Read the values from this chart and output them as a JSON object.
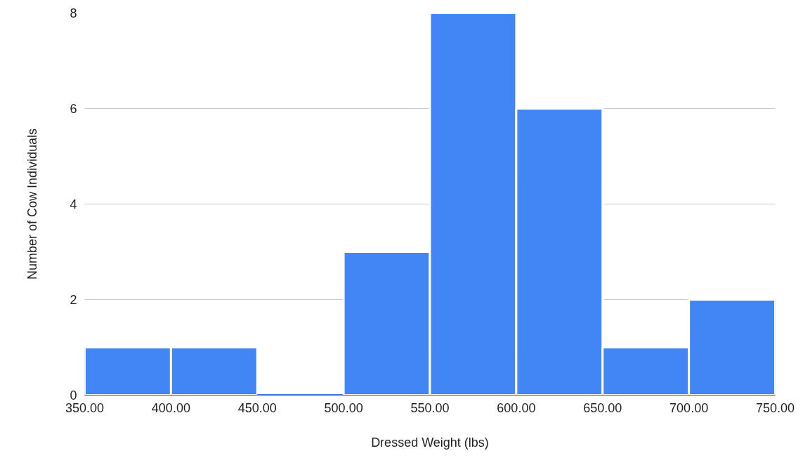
{
  "chart_data": {
    "type": "histogram",
    "xlabel": "Dressed Weight (lbs)",
    "ylabel": "Number of Cow Individuals",
    "bins": [
      350,
      400,
      450,
      500,
      550,
      600,
      650,
      700,
      750
    ],
    "values": [
      1,
      1,
      0,
      3,
      8,
      6,
      1,
      2
    ],
    "color": "#4285f4",
    "xlim": [
      350,
      750
    ],
    "ylim": [
      0,
      8
    ],
    "xticks": [
      {
        "value": 350,
        "label": "350.00"
      },
      {
        "value": 400,
        "label": "400.00"
      },
      {
        "value": 450,
        "label": "450.00"
      },
      {
        "value": 500,
        "label": "500.00"
      },
      {
        "value": 550,
        "label": "550.00"
      },
      {
        "value": 600,
        "label": "600.00"
      },
      {
        "value": 650,
        "label": "650.00"
      },
      {
        "value": 700,
        "label": "700.00"
      },
      {
        "value": 750,
        "label": "750.00"
      }
    ],
    "yticks": [
      0,
      2,
      4,
      6,
      8
    ],
    "grid": "y"
  }
}
